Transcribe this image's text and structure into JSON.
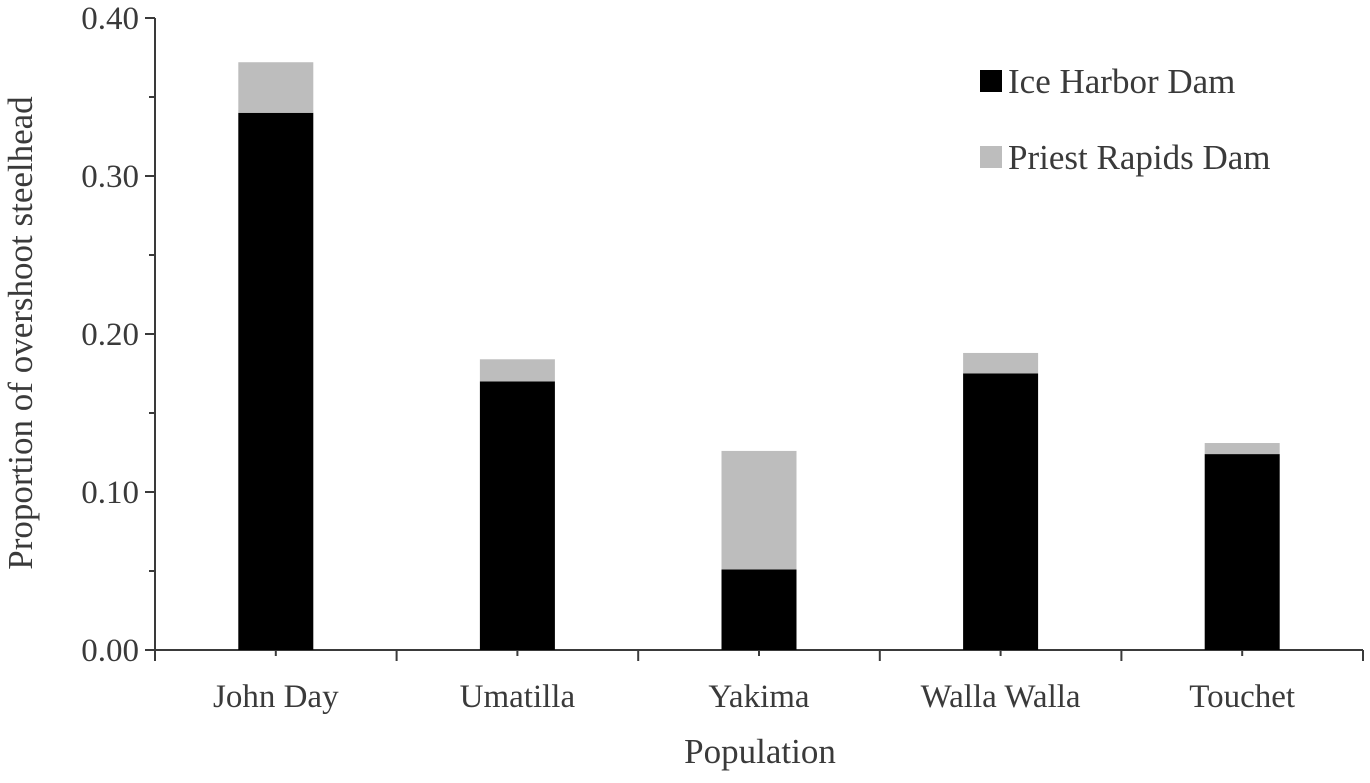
{
  "chart_data": {
    "type": "bar",
    "stacked": true,
    "title": "",
    "xlabel": "Population",
    "ylabel": "Proportion of overshoot steelhead",
    "categories": [
      "John Day",
      "Umatilla",
      "Yakima",
      "Walla Walla",
      "Touchet"
    ],
    "series": [
      {
        "name": "Ice Harbor Dam",
        "color": "#000000",
        "values": [
          0.34,
          0.17,
          0.051,
          0.175,
          0.124
        ]
      },
      {
        "name": "Priest Rapids Dam",
        "color": "#bdbdbd",
        "values": [
          0.032,
          0.014,
          0.075,
          0.013,
          0.007
        ]
      }
    ],
    "ylim": [
      0,
      0.4
    ],
    "yticks": [
      "0.00",
      "0.10",
      "0.20",
      "0.30",
      "0.40"
    ],
    "grid": false,
    "legend_position": "top-right"
  }
}
